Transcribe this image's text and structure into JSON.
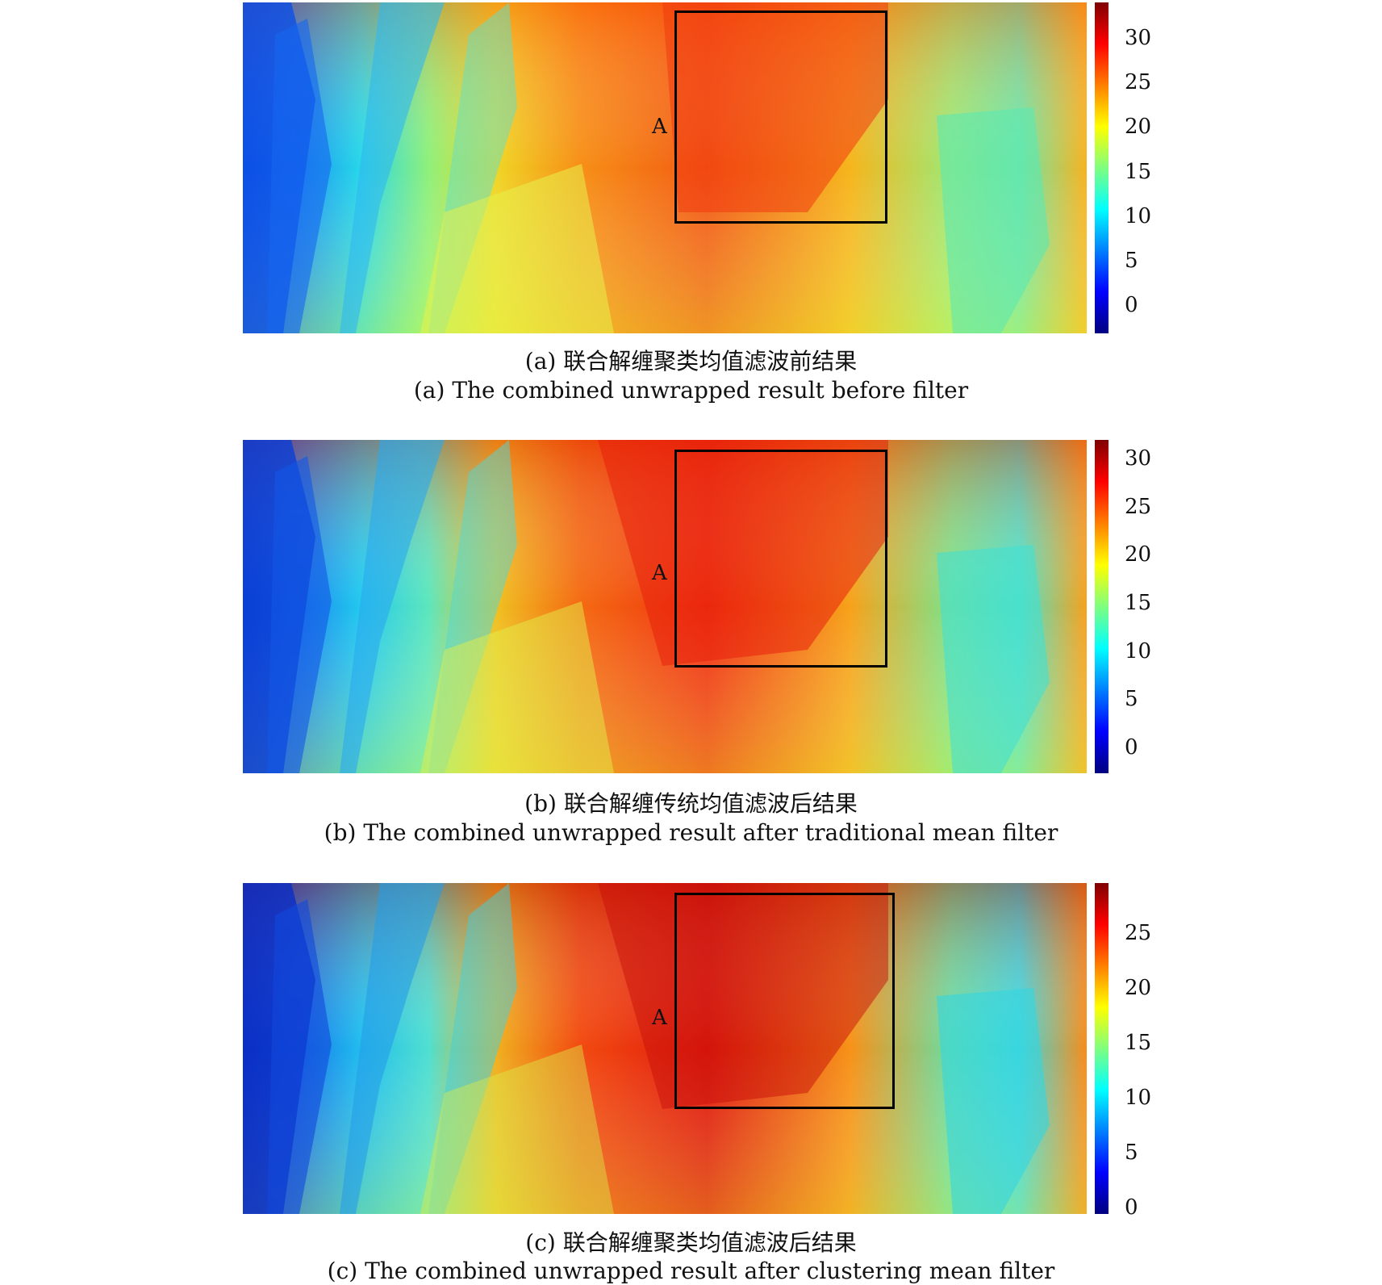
{
  "figure": {
    "panels": [
      {
        "id": "a",
        "region_label": "A",
        "caption_cn": "(a) 联合解缠聚类均值滤波前结果",
        "caption_en": "(a) The combined unwrapped result before filter",
        "colorbar_ticks": [
          "30",
          "25",
          "20",
          "15",
          "10",
          "5",
          "0"
        ]
      },
      {
        "id": "b",
        "region_label": "A",
        "caption_cn": "(b) 联合解缠传统均值滤波后结果",
        "caption_en": "(b) The combined unwrapped result after traditional mean filter",
        "colorbar_ticks": [
          "30",
          "25",
          "20",
          "15",
          "10",
          "5",
          "0"
        ]
      },
      {
        "id": "c",
        "region_label": "A",
        "caption_cn": "(c) 联合解缠聚类均值滤波后结果",
        "caption_en": "(c) The combined unwrapped result after clustering mean filter",
        "colorbar_ticks": [
          "25",
          "20",
          "15",
          "10",
          "5",
          "0"
        ]
      }
    ]
  },
  "colors": {
    "jet": [
      "#00007f",
      "#0000ff",
      "#007fff",
      "#00ffff",
      "#7fff7f",
      "#ffff00",
      "#ff7f00",
      "#ff0000",
      "#7f0000"
    ],
    "box": "#000000"
  }
}
